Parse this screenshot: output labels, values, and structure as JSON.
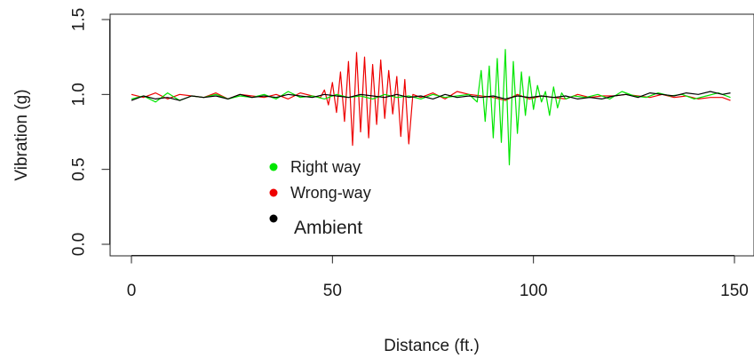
{
  "chart_data": {
    "type": "line",
    "xlabel": "Distance (ft.)",
    "ylabel": "Vibration (g)",
    "xlim": [
      -5,
      155
    ],
    "ylim": [
      0.0,
      1.5
    ],
    "x_ticks": [
      0,
      50,
      100,
      150
    ],
    "x_tick_labels": [
      "0",
      "50",
      "100",
      "150"
    ],
    "y_ticks": [
      0.0,
      0.5,
      1.0,
      1.5
    ],
    "y_tick_labels": [
      "0.0",
      "0.5",
      "1.0",
      "1.5"
    ],
    "grid": false,
    "legend_position": "lower-left inside plot",
    "series": [
      {
        "name": "Right way",
        "color": "#00e600",
        "x": [
          0,
          3,
          6,
          9,
          12,
          15,
          18,
          21,
          24,
          27,
          30,
          33,
          36,
          39,
          42,
          45,
          48,
          51,
          54,
          57,
          60,
          63,
          66,
          69,
          72,
          75,
          78,
          81,
          84,
          86,
          87,
          88,
          89,
          90,
          91,
          92,
          93,
          94,
          95,
          96,
          97,
          98,
          99,
          100,
          101,
          102,
          103,
          104,
          105,
          106,
          107,
          108,
          110,
          113,
          116,
          119,
          122,
          125,
          128,
          131,
          134,
          137,
          140,
          143,
          146,
          149
        ],
        "values": [
          0.97,
          0.99,
          0.95,
          1.01,
          0.96,
          0.99,
          0.98,
          1.0,
          0.97,
          0.99,
          0.98,
          1.0,
          0.97,
          1.02,
          0.98,
          0.99,
          0.97,
          1.0,
          0.98,
          0.99,
          0.97,
          1.0,
          0.98,
          0.99,
          0.97,
          1.0,
          0.98,
          0.99,
          1.0,
          0.95,
          1.16,
          0.82,
          1.19,
          0.71,
          1.24,
          0.68,
          1.3,
          0.53,
          1.22,
          0.74,
          1.15,
          0.86,
          1.12,
          0.9,
          1.06,
          0.95,
          1.02,
          0.86,
          1.05,
          0.91,
          1.01,
          0.97,
          0.99,
          0.98,
          1.0,
          0.97,
          1.02,
          0.99,
          0.98,
          1.01,
          0.99,
          1.0,
          0.97,
          0.99,
          1.01,
          0.98
        ]
      },
      {
        "name": "Wrong-way",
        "color": "#ee0000",
        "x": [
          0,
          3,
          6,
          9,
          12,
          15,
          18,
          21,
          24,
          27,
          30,
          33,
          36,
          39,
          42,
          45,
          47,
          48,
          49,
          50,
          51,
          52,
          53,
          54,
          55,
          56,
          57,
          58,
          59,
          60,
          61,
          62,
          63,
          64,
          65,
          66,
          67,
          68,
          69,
          70,
          72,
          75,
          78,
          81,
          84,
          87,
          90,
          93,
          96,
          99,
          102,
          105,
          108,
          111,
          114,
          117,
          120,
          123,
          126,
          129,
          132,
          135,
          138,
          141,
          144,
          147,
          149
        ],
        "values": [
          1.0,
          0.98,
          1.01,
          0.97,
          1.0,
          0.99,
          0.98,
          1.01,
          0.97,
          1.0,
          0.99,
          0.98,
          1.0,
          0.97,
          1.01,
          0.99,
          0.98,
          1.03,
          0.93,
          1.08,
          0.88,
          1.15,
          0.82,
          1.22,
          0.66,
          1.28,
          0.75,
          1.25,
          0.71,
          1.2,
          0.8,
          1.23,
          0.84,
          1.16,
          0.87,
          1.12,
          0.72,
          1.1,
          0.67,
          1.0,
          0.98,
          1.01,
          0.97,
          1.02,
          1.0,
          0.99,
          0.98,
          0.96,
          1.0,
          0.97,
          0.99,
          0.98,
          0.97,
          1.0,
          0.98,
          0.99,
          0.99,
          1.0,
          0.99,
          0.98,
          1.0,
          0.98,
          0.99,
          0.97,
          0.98,
          0.98,
          0.96
        ]
      },
      {
        "name": "Ambient",
        "color": "#000000",
        "x": [
          0,
          3,
          6,
          9,
          12,
          15,
          18,
          21,
          24,
          27,
          30,
          33,
          36,
          39,
          42,
          45,
          48,
          51,
          54,
          57,
          60,
          63,
          66,
          69,
          72,
          75,
          78,
          81,
          84,
          87,
          90,
          93,
          96,
          99,
          102,
          105,
          108,
          111,
          114,
          117,
          120,
          123,
          126,
          129,
          132,
          135,
          138,
          141,
          144,
          147,
          149
        ],
        "values": [
          0.96,
          0.99,
          0.97,
          0.98,
          0.96,
          0.99,
          0.98,
          0.99,
          0.97,
          1.0,
          0.98,
          0.99,
          0.98,
          1.0,
          0.99,
          0.98,
          1.0,
          0.99,
          0.98,
          1.0,
          0.99,
          0.98,
          1.0,
          0.98,
          0.99,
          0.97,
          1.0,
          0.98,
          0.99,
          0.98,
          0.99,
          0.97,
          0.99,
          0.98,
          0.99,
          0.98,
          0.99,
          0.97,
          0.98,
          0.97,
          0.99,
          1.0,
          0.98,
          1.01,
          1.0,
          0.99,
          1.01,
          1.0,
          1.02,
          1.0,
          1.01
        ]
      }
    ]
  }
}
